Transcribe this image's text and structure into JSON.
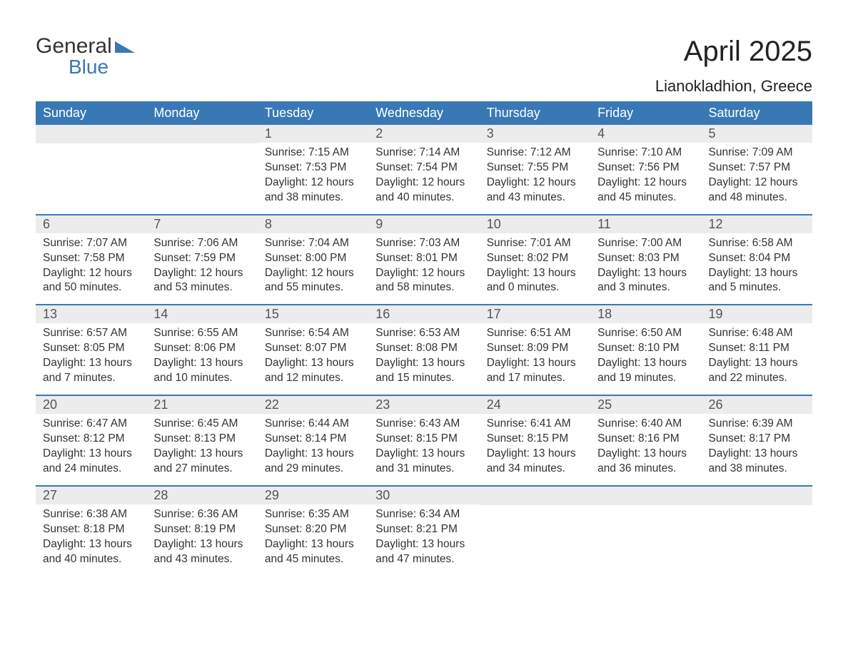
{
  "logo": {
    "word1": "General",
    "word2": "Blue",
    "triangle_color": "#3a78b5"
  },
  "title": "April 2025",
  "location": "Lianokladhion, Greece",
  "colors": {
    "header_bg": "#3a78b5",
    "header_text": "#ffffff",
    "daynum_bg": "#ececec",
    "daynum_text": "#555555",
    "body_text": "#333333",
    "page_bg": "#ffffff",
    "week_border": "#3a78b5"
  },
  "dow": [
    "Sunday",
    "Monday",
    "Tuesday",
    "Wednesday",
    "Thursday",
    "Friday",
    "Saturday"
  ],
  "weeks": [
    [
      null,
      null,
      {
        "n": "1",
        "sr": "Sunrise: 7:15 AM",
        "ss": "Sunset: 7:53 PM",
        "dl": "Daylight: 12 hours and 38 minutes."
      },
      {
        "n": "2",
        "sr": "Sunrise: 7:14 AM",
        "ss": "Sunset: 7:54 PM",
        "dl": "Daylight: 12 hours and 40 minutes."
      },
      {
        "n": "3",
        "sr": "Sunrise: 7:12 AM",
        "ss": "Sunset: 7:55 PM",
        "dl": "Daylight: 12 hours and 43 minutes."
      },
      {
        "n": "4",
        "sr": "Sunrise: 7:10 AM",
        "ss": "Sunset: 7:56 PM",
        "dl": "Daylight: 12 hours and 45 minutes."
      },
      {
        "n": "5",
        "sr": "Sunrise: 7:09 AM",
        "ss": "Sunset: 7:57 PM",
        "dl": "Daylight: 12 hours and 48 minutes."
      }
    ],
    [
      {
        "n": "6",
        "sr": "Sunrise: 7:07 AM",
        "ss": "Sunset: 7:58 PM",
        "dl": "Daylight: 12 hours and 50 minutes."
      },
      {
        "n": "7",
        "sr": "Sunrise: 7:06 AM",
        "ss": "Sunset: 7:59 PM",
        "dl": "Daylight: 12 hours and 53 minutes."
      },
      {
        "n": "8",
        "sr": "Sunrise: 7:04 AM",
        "ss": "Sunset: 8:00 PM",
        "dl": "Daylight: 12 hours and 55 minutes."
      },
      {
        "n": "9",
        "sr": "Sunrise: 7:03 AM",
        "ss": "Sunset: 8:01 PM",
        "dl": "Daylight: 12 hours and 58 minutes."
      },
      {
        "n": "10",
        "sr": "Sunrise: 7:01 AM",
        "ss": "Sunset: 8:02 PM",
        "dl": "Daylight: 13 hours and 0 minutes."
      },
      {
        "n": "11",
        "sr": "Sunrise: 7:00 AM",
        "ss": "Sunset: 8:03 PM",
        "dl": "Daylight: 13 hours and 3 minutes."
      },
      {
        "n": "12",
        "sr": "Sunrise: 6:58 AM",
        "ss": "Sunset: 8:04 PM",
        "dl": "Daylight: 13 hours and 5 minutes."
      }
    ],
    [
      {
        "n": "13",
        "sr": "Sunrise: 6:57 AM",
        "ss": "Sunset: 8:05 PM",
        "dl": "Daylight: 13 hours and 7 minutes."
      },
      {
        "n": "14",
        "sr": "Sunrise: 6:55 AM",
        "ss": "Sunset: 8:06 PM",
        "dl": "Daylight: 13 hours and 10 minutes."
      },
      {
        "n": "15",
        "sr": "Sunrise: 6:54 AM",
        "ss": "Sunset: 8:07 PM",
        "dl": "Daylight: 13 hours and 12 minutes."
      },
      {
        "n": "16",
        "sr": "Sunrise: 6:53 AM",
        "ss": "Sunset: 8:08 PM",
        "dl": "Daylight: 13 hours and 15 minutes."
      },
      {
        "n": "17",
        "sr": "Sunrise: 6:51 AM",
        "ss": "Sunset: 8:09 PM",
        "dl": "Daylight: 13 hours and 17 minutes."
      },
      {
        "n": "18",
        "sr": "Sunrise: 6:50 AM",
        "ss": "Sunset: 8:10 PM",
        "dl": "Daylight: 13 hours and 19 minutes."
      },
      {
        "n": "19",
        "sr": "Sunrise: 6:48 AM",
        "ss": "Sunset: 8:11 PM",
        "dl": "Daylight: 13 hours and 22 minutes."
      }
    ],
    [
      {
        "n": "20",
        "sr": "Sunrise: 6:47 AM",
        "ss": "Sunset: 8:12 PM",
        "dl": "Daylight: 13 hours and 24 minutes."
      },
      {
        "n": "21",
        "sr": "Sunrise: 6:45 AM",
        "ss": "Sunset: 8:13 PM",
        "dl": "Daylight: 13 hours and 27 minutes."
      },
      {
        "n": "22",
        "sr": "Sunrise: 6:44 AM",
        "ss": "Sunset: 8:14 PM",
        "dl": "Daylight: 13 hours and 29 minutes."
      },
      {
        "n": "23",
        "sr": "Sunrise: 6:43 AM",
        "ss": "Sunset: 8:15 PM",
        "dl": "Daylight: 13 hours and 31 minutes."
      },
      {
        "n": "24",
        "sr": "Sunrise: 6:41 AM",
        "ss": "Sunset: 8:15 PM",
        "dl": "Daylight: 13 hours and 34 minutes."
      },
      {
        "n": "25",
        "sr": "Sunrise: 6:40 AM",
        "ss": "Sunset: 8:16 PM",
        "dl": "Daylight: 13 hours and 36 minutes."
      },
      {
        "n": "26",
        "sr": "Sunrise: 6:39 AM",
        "ss": "Sunset: 8:17 PM",
        "dl": "Daylight: 13 hours and 38 minutes."
      }
    ],
    [
      {
        "n": "27",
        "sr": "Sunrise: 6:38 AM",
        "ss": "Sunset: 8:18 PM",
        "dl": "Daylight: 13 hours and 40 minutes."
      },
      {
        "n": "28",
        "sr": "Sunrise: 6:36 AM",
        "ss": "Sunset: 8:19 PM",
        "dl": "Daylight: 13 hours and 43 minutes."
      },
      {
        "n": "29",
        "sr": "Sunrise: 6:35 AM",
        "ss": "Sunset: 8:20 PM",
        "dl": "Daylight: 13 hours and 45 minutes."
      },
      {
        "n": "30",
        "sr": "Sunrise: 6:34 AM",
        "ss": "Sunset: 8:21 PM",
        "dl": "Daylight: 13 hours and 47 minutes."
      },
      null,
      null,
      null
    ]
  ]
}
